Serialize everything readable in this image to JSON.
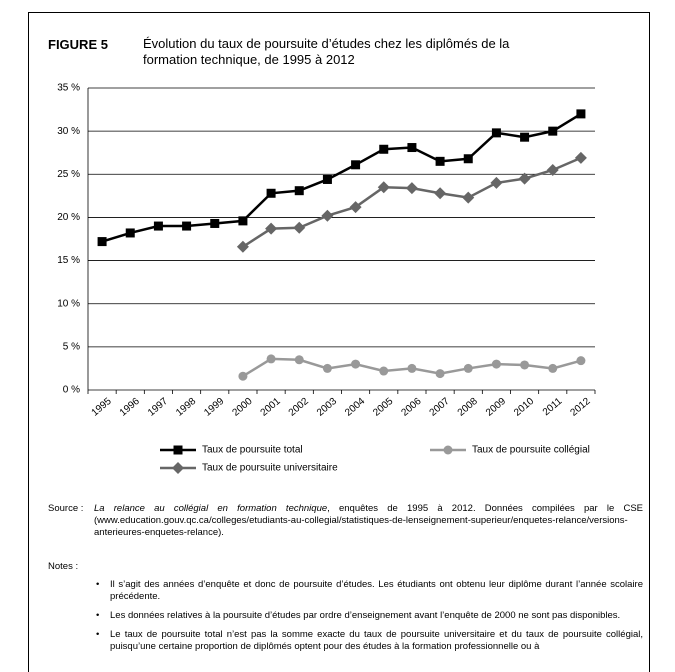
{
  "figure_label": "FIGURE 5",
  "chart_data": {
    "type": "line",
    "title": "Évolution du taux de poursuite d’études chez les diplômés de la formation technique, de 1995 à 2012",
    "categories": [
      "1995",
      "1996",
      "1997",
      "1998",
      "1999",
      "2000",
      "2001",
      "2002",
      "2003",
      "2004",
      "2005",
      "2006",
      "2007",
      "2008",
      "2009",
      "2010",
      "2011",
      "2012"
    ],
    "series": [
      {
        "name": "Taux de poursuite total",
        "color": "#000000",
        "marker": "square",
        "values": [
          17.2,
          18.2,
          19.0,
          19.0,
          19.3,
          19.6,
          22.8,
          23.1,
          24.4,
          26.1,
          27.9,
          28.1,
          26.5,
          26.8,
          29.8,
          29.3,
          30.0,
          32.0
        ]
      },
      {
        "name": "Taux de poursuite collégial",
        "color": "#999999",
        "marker": "circle",
        "values": [
          null,
          null,
          null,
          null,
          null,
          1.6,
          3.6,
          3.5,
          2.5,
          3.0,
          2.2,
          2.5,
          1.9,
          2.5,
          3.0,
          2.9,
          2.5,
          3.4
        ]
      },
      {
        "name": "Taux de poursuite universitaire",
        "color": "#666666",
        "marker": "diamond",
        "values": [
          null,
          null,
          null,
          null,
          null,
          16.6,
          18.7,
          18.8,
          20.2,
          21.2,
          23.5,
          23.4,
          22.8,
          22.3,
          24.0,
          24.5,
          25.5,
          26.9
        ]
      }
    ],
    "ylim": [
      0,
      35
    ],
    "yticks": [
      {
        "value": 0,
        "label": "0 %"
      },
      {
        "value": 5,
        "label": "5 %"
      },
      {
        "value": 10,
        "label": "10 %"
      },
      {
        "value": 15,
        "label": "15 %"
      },
      {
        "value": 20,
        "label": "20 %"
      },
      {
        "value": 25,
        "label": "25 %"
      },
      {
        "value": 30,
        "label": "30 %"
      },
      {
        "value": 35,
        "label": "35 %"
      }
    ],
    "grid": true
  },
  "source": {
    "label": "Source :",
    "title": "La relance au collégial en formation technique",
    "text": ", enquêtes de 1995 à 2012. Données compilées par le CSE (www.education.gouv.qc.ca/colleges/etudiants-au-collegial/statistiques-de-lenseignement-superieur/enquetes-relance/versions-anterieures-enquetes-relance)."
  },
  "notes": {
    "label": "Notes :",
    "items": [
      "Il s’agit des années d’enquête et donc de poursuite d’études. Les étudiants ont obtenu leur diplôme durant l’année scolaire précédente.",
      "Les données relatives à la poursuite d’études par ordre d’enseignement avant l’enquête de 2000 ne sont pas disponibles.",
      "Le taux de poursuite total n’est pas la somme exacte du taux de poursuite universitaire et du taux de poursuite collégial, puisqu’une certaine proportion de diplômés optent pour des études à la formation professionnelle ou à"
    ]
  }
}
